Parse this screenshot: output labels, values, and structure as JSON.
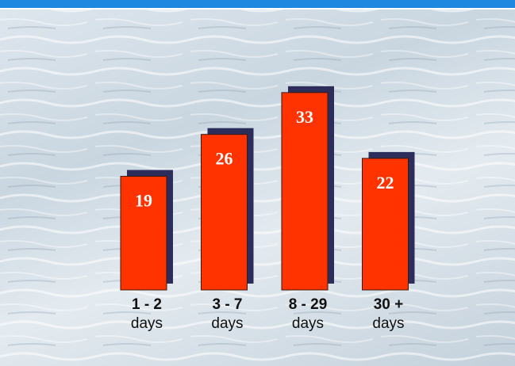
{
  "chart_data": {
    "type": "bar",
    "categories": [
      "1 - 2\ndays",
      "3 - 7\ndays",
      "8 - 29\ndays",
      "30 +\ndays"
    ],
    "values": [
      19,
      26,
      33,
      22
    ],
    "color": "#ff3300",
    "shadow_color": "#2d2d5c"
  }
}
